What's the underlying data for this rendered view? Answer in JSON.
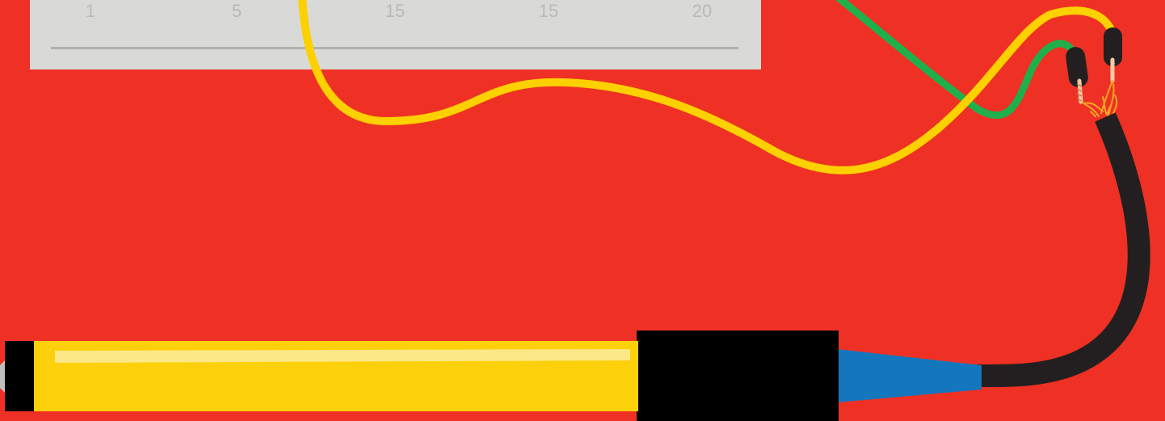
{
  "breadboard": {
    "column_numbers": [
      "1",
      "5",
      "15",
      "15",
      "20"
    ]
  },
  "colors": {
    "background": "#ee3124",
    "breadboard": "#d9d9d7",
    "yellow_wire": "#fdd000",
    "green_wire": "#1fb04b",
    "black_cable": "#231f20",
    "blue_collar": "#1476bd",
    "handle_yellow": "#fcd10b"
  },
  "icons": {
    "tool": "soldering-iron-icon",
    "wires": "jumper-wire-icon"
  }
}
